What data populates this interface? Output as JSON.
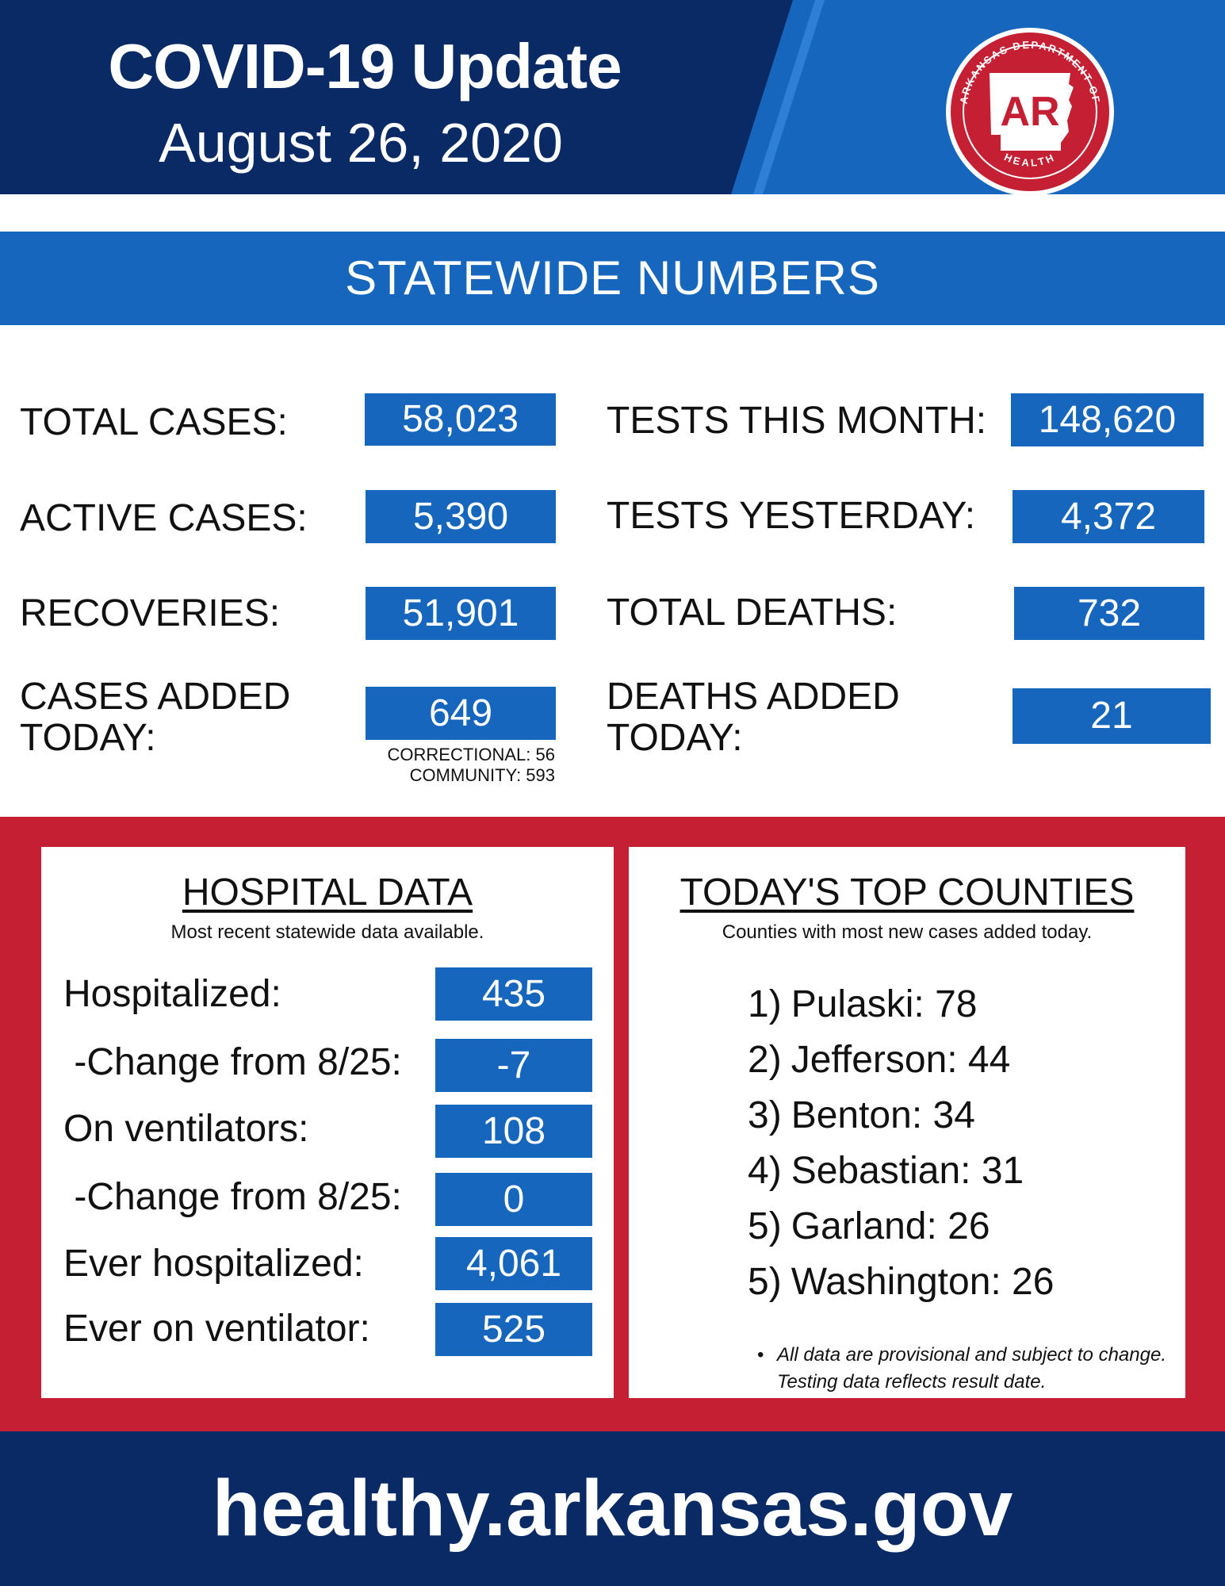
{
  "header": {
    "title": "COVID-19 Update",
    "date": "August 26, 2020",
    "seal": {
      "text_top": "ARKANSAS DEPARTMENT OF",
      "text_bottom": "HEALTH",
      "initials": "AR"
    }
  },
  "section_title": "STATEWIDE NUMBERS",
  "stats_left": [
    {
      "label": "TOTAL CASES:",
      "value": "58,023"
    },
    {
      "label": "ACTIVE CASES:",
      "value": "5,390"
    },
    {
      "label": "RECOVERIES:",
      "value": "51,901"
    },
    {
      "label_line1": "CASES ADDED",
      "label_line2": "TODAY:",
      "value": "649",
      "note_line1": "CORRECTIONAL: 56",
      "note_line2": "COMMUNITY: 593"
    }
  ],
  "stats_right": [
    {
      "label": "TESTS THIS MONTH:",
      "value": "148,620"
    },
    {
      "label": "TESTS YESTERDAY:",
      "value": "4,372"
    },
    {
      "label": "TOTAL DEATHS:",
      "value": "732"
    },
    {
      "label_line1": "DEATHS ADDED",
      "label_line2": "TODAY:",
      "value": "21"
    }
  ],
  "hospital": {
    "title": "HOSPITAL DATA",
    "subtitle": "Most recent statewide data available.",
    "rows": [
      {
        "label": "Hospitalized:",
        "value": "435"
      },
      {
        "label": " -Change from 8/25:",
        "value": "-7"
      },
      {
        "label": "On ventilators:",
        "value": "108"
      },
      {
        "label": " -Change from 8/25:",
        "value": "0"
      },
      {
        "label": "Ever hospitalized:",
        "value": "4,061"
      },
      {
        "label": "Ever on ventilator:",
        "value": "525"
      }
    ]
  },
  "counties": {
    "title": "TODAY'S TOP COUNTIES",
    "subtitle": "Counties with most new cases added today.",
    "items": [
      {
        "rank": "1)",
        "text": "Pulaski: 78"
      },
      {
        "rank": "2)",
        "text": "Jefferson: 44"
      },
      {
        "rank": "3)",
        "text": "Benton: 34"
      },
      {
        "rank": "4)",
        "text": "Sebastian: 31"
      },
      {
        "rank": "5)",
        "text": "Garland: 26"
      },
      {
        "rank": "5)",
        "text": "Washington: 26"
      }
    ],
    "note_line1": "All data are provisional and subject to change.",
    "note_line2": "Testing data reflects result date."
  },
  "footer": {
    "url": "healthy.arkansas.gov"
  },
  "colors": {
    "navy": "#0a2a66",
    "blue": "#1766be",
    "red": "#c41f33",
    "white": "#ffffff"
  }
}
